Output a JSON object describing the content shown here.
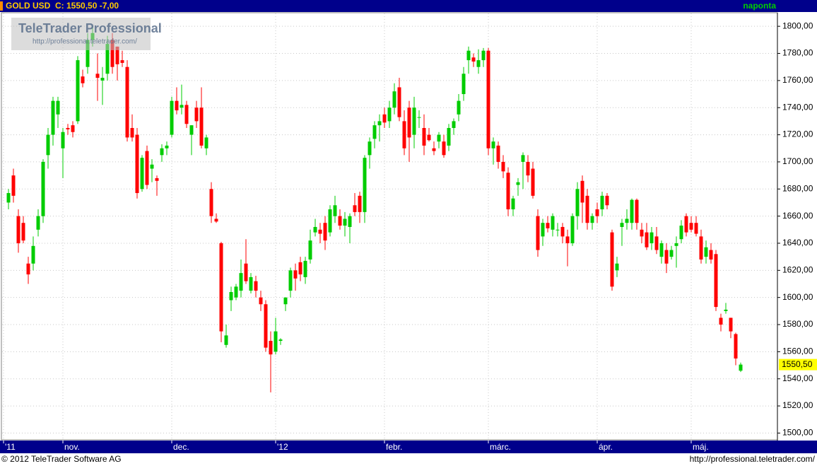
{
  "header": {
    "symbol": "GOLD USD",
    "quote": "C: 1550,50 -7,00",
    "interval": "naponta"
  },
  "watermark": {
    "title": "TeleTrader Professional",
    "url": "http://professional.teletrader.com/"
  },
  "footer": {
    "copyright": "© 2012 TeleTrader Software AG",
    "url": "http://professional.teletrader.com/"
  },
  "chart_data": {
    "type": "candlestick",
    "up_color": "#00cc00",
    "down_color": "#ff0000",
    "xlim": [
      -1,
      155
    ],
    "xticks": [
      {
        "value": -1,
        "label": "'11"
      },
      {
        "value": 11,
        "label": "nov."
      },
      {
        "value": 33,
        "label": "dec."
      },
      {
        "value": 54,
        "label": "'12"
      },
      {
        "value": 76,
        "label": "febr."
      },
      {
        "value": 97,
        "label": "márc."
      },
      {
        "value": 119,
        "label": "ápr."
      },
      {
        "value": 138,
        "label": "máj."
      }
    ],
    "ylim": [
      1495,
      1810
    ],
    "yticks": [
      {
        "value": 1500,
        "label": "1500,00"
      },
      {
        "value": 1520,
        "label": "1520,00"
      },
      {
        "value": 1540,
        "label": "1540,00"
      },
      {
        "value": 1560,
        "label": "1560,00"
      },
      {
        "value": 1580,
        "label": "1580,00"
      },
      {
        "value": 1600,
        "label": "1600,00"
      },
      {
        "value": 1620,
        "label": "1620,00"
      },
      {
        "value": 1640,
        "label": "1640,00"
      },
      {
        "value": 1660,
        "label": "1660,00"
      },
      {
        "value": 1680,
        "label": "1680,00"
      },
      {
        "value": 1700,
        "label": "1700,00"
      },
      {
        "value": 1720,
        "label": "1720,00"
      },
      {
        "value": 1740,
        "label": "1740,00"
      },
      {
        "value": 1760,
        "label": "1760,00"
      },
      {
        "value": 1780,
        "label": "1780,00"
      },
      {
        "value": 1800,
        "label": "1800,00"
      }
    ],
    "grid": true,
    "last_label": "1550,50",
    "open": [
      1670,
      1690,
      1660,
      1655,
      1625,
      1625,
      1650,
      1660,
      1705,
      1720,
      1735,
      1710,
      1725,
      1727,
      1730,
      1763,
      1770,
      1790,
      1765,
      1760,
      1765,
      1790,
      1785,
      1775,
      1770,
      1725,
      1720,
      1680,
      1708,
      1695,
      1688,
      1705,
      1710,
      1720,
      1745,
      1740,
      1742,
      1720,
      1740,
      1740,
      1710,
      1680,
      1658,
      1640,
      1565,
      1598,
      1600,
      1605,
      1625,
      1605,
      1612,
      1600,
      1595,
      1568,
      1560,
      1568,
      1595,
      1605,
      1620,
      1626,
      1615,
      1628,
      1648,
      1650,
      1655,
      1648,
      1660,
      1660,
      1653,
      1652,
      1668,
      1675,
      1663,
      1705,
      1717,
      1727,
      1735,
      1730,
      1740,
      1755,
      1730,
      1740,
      1720,
      1733,
      1725,
      1720,
      1710,
      1715,
      1715,
      1712,
      1725,
      1735,
      1750,
      1775,
      1777,
      1770,
      1775,
      1782,
      1710,
      1712,
      1700,
      1692,
      1665,
      1683,
      1700,
      1700,
      1695,
      1660,
      1645,
      1655,
      1650,
      1650,
      1652,
      1645,
      1640,
      1660,
      1686,
      1675,
      1655,
      1665,
      1665,
      1675,
      1648,
      1620,
      1652,
      1655,
      1655,
      1672,
      1650,
      1648,
      1640,
      1645,
      1630,
      1635,
      1630,
      1638,
      1643,
      1660,
      1655,
      1655,
      1645,
      1630,
      1635,
      1632,
      1585,
      1590,
      1585,
      1573,
      1546
    ],
    "high": [
      1680,
      1695,
      1665,
      1660,
      1630,
      1645,
      1665,
      1702,
      1725,
      1748,
      1748,
      1725,
      1728,
      1730,
      1778,
      1768,
      1795,
      1800,
      1780,
      1770,
      1793,
      1795,
      1785,
      1782,
      1775,
      1735,
      1725,
      1705,
      1712,
      1702,
      1690,
      1713,
      1715,
      1748,
      1755,
      1757,
      1745,
      1727,
      1745,
      1755,
      1720,
      1685,
      1662,
      1641,
      1580,
      1608,
      1610,
      1628,
      1643,
      1618,
      1616,
      1605,
      1598,
      1575,
      1585,
      1570,
      1600,
      1622,
      1625,
      1630,
      1630,
      1650,
      1658,
      1655,
      1660,
      1668,
      1675,
      1665,
      1663,
      1662,
      1677,
      1678,
      1705,
      1718,
      1730,
      1735,
      1740,
      1745,
      1758,
      1762,
      1738,
      1745,
      1748,
      1738,
      1735,
      1725,
      1715,
      1722,
      1720,
      1728,
      1732,
      1750,
      1770,
      1785,
      1780,
      1783,
      1784,
      1784,
      1718,
      1715,
      1705,
      1696,
      1675,
      1688,
      1707,
      1705,
      1700,
      1665,
      1658,
      1660,
      1662,
      1655,
      1655,
      1650,
      1662,
      1685,
      1690,
      1680,
      1662,
      1670,
      1678,
      1677,
      1650,
      1630,
      1658,
      1665,
      1673,
      1673,
      1655,
      1655,
      1652,
      1652,
      1642,
      1640,
      1638,
      1645,
      1657,
      1662,
      1660,
      1660,
      1650,
      1642,
      1640,
      1635,
      1588,
      1596,
      1585,
      1574,
      1552
    ],
    "low": [
      1665,
      1670,
      1633,
      1640,
      1610,
      1620,
      1645,
      1655,
      1695,
      1712,
      1725,
      1688,
      1720,
      1718,
      1728,
      1755,
      1765,
      1785,
      1745,
      1742,
      1760,
      1765,
      1760,
      1770,
      1715,
      1715,
      1673,
      1678,
      1680,
      1685,
      1675,
      1700,
      1705,
      1718,
      1735,
      1735,
      1725,
      1705,
      1725,
      1710,
      1705,
      1655,
      1655,
      1567,
      1563,
      1590,
      1598,
      1600,
      1610,
      1603,
      1600,
      1590,
      1560,
      1530,
      1558,
      1565,
      1590,
      1600,
      1605,
      1612,
      1610,
      1625,
      1645,
      1640,
      1635,
      1645,
      1655,
      1650,
      1645,
      1640,
      1660,
      1655,
      1655,
      1695,
      1710,
      1715,
      1725,
      1725,
      1735,
      1730,
      1705,
      1700,
      1710,
      1725,
      1705,
      1715,
      1705,
      1710,
      1703,
      1708,
      1720,
      1730,
      1745,
      1765,
      1770,
      1765,
      1770,
      1705,
      1698,
      1695,
      1688,
      1660,
      1660,
      1675,
      1680,
      1685,
      1673,
      1630,
      1638,
      1648,
      1645,
      1645,
      1640,
      1623,
      1638,
      1650,
      1655,
      1650,
      1650,
      1655,
      1660,
      1665,
      1605,
      1615,
      1638,
      1650,
      1650,
      1650,
      1640,
      1635,
      1635,
      1632,
      1625,
      1618,
      1628,
      1622,
      1640,
      1645,
      1648,
      1645,
      1625,
      1625,
      1625,
      1590,
      1575,
      1588,
      1570,
      1550,
      1545
    ],
    "close": [
      1677,
      1675,
      1640,
      1642,
      1617,
      1638,
      1660,
      1700,
      1720,
      1745,
      1745,
      1722,
      1724,
      1722,
      1775,
      1758,
      1790,
      1795,
      1762,
      1762,
      1787,
      1770,
      1772,
      1773,
      1718,
      1718,
      1677,
      1703,
      1683,
      1698,
      1686,
      1710,
      1712,
      1745,
      1738,
      1742,
      1728,
      1727,
      1730,
      1712,
      1718,
      1660,
      1656,
      1575,
      1572,
      1604,
      1608,
      1618,
      1612,
      1615,
      1605,
      1595,
      1563,
      1558,
      1575,
      1569,
      1600,
      1620,
      1614,
      1617,
      1627,
      1642,
      1652,
      1647,
      1642,
      1665,
      1668,
      1653,
      1658,
      1660,
      1663,
      1663,
      1703,
      1715,
      1727,
      1730,
      1729,
      1740,
      1752,
      1733,
      1710,
      1718,
      1740,
      1733,
      1712,
      1716,
      1708,
      1720,
      1705,
      1725,
      1730,
      1745,
      1765,
      1782,
      1774,
      1775,
      1782,
      1710,
      1715,
      1700,
      1693,
      1665,
      1673,
      1685,
      1705,
      1690,
      1675,
      1635,
      1655,
      1651,
      1660,
      1650,
      1645,
      1640,
      1660,
      1680,
      1670,
      1655,
      1660,
      1660,
      1675,
      1668,
      1608,
      1625,
      1655,
      1658,
      1672,
      1655,
      1645,
      1637,
      1648,
      1635,
      1640,
      1625,
      1635,
      1640,
      1653,
      1648,
      1650,
      1647,
      1628,
      1637,
      1628,
      1593,
      1580,
      1591,
      1575,
      1555,
      1550.5
    ]
  }
}
